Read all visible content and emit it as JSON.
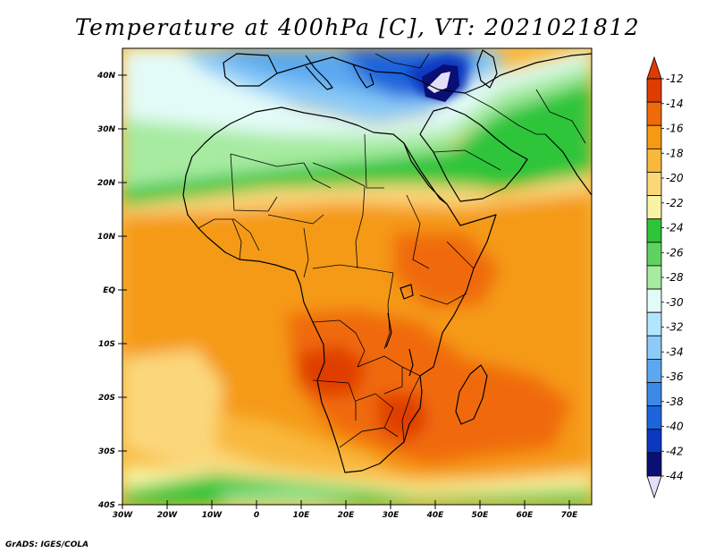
{
  "title": "Temperature at 400hPa [C], VT: 2021021812",
  "credit": "GrADS: IGES/COLA",
  "map": {
    "region": "Africa and surrounding oceans",
    "lon_range": [
      -30,
      75
    ],
    "lat_range": [
      -40,
      45
    ],
    "lat_ticks": [
      {
        "value": 40,
        "label": "40N"
      },
      {
        "value": 30,
        "label": "30N"
      },
      {
        "value": 20,
        "label": "20N"
      },
      {
        "value": 10,
        "label": "10N"
      },
      {
        "value": 0,
        "label": "EQ"
      },
      {
        "value": -10,
        "label": "10S"
      },
      {
        "value": -20,
        "label": "20S"
      },
      {
        "value": -30,
        "label": "30S"
      },
      {
        "value": -40,
        "label": "40S"
      }
    ],
    "lon_ticks": [
      {
        "value": -30,
        "label": "30W"
      },
      {
        "value": -20,
        "label": "20W"
      },
      {
        "value": -10,
        "label": "10W"
      },
      {
        "value": 0,
        "label": "0"
      },
      {
        "value": 10,
        "label": "10E"
      },
      {
        "value": 20,
        "label": "20E"
      },
      {
        "value": 30,
        "label": "30E"
      },
      {
        "value": 40,
        "label": "40E"
      },
      {
        "value": 50,
        "label": "50E"
      },
      {
        "value": 60,
        "label": "60E"
      },
      {
        "value": 70,
        "label": "70E"
      }
    ]
  },
  "colorbar": {
    "labels": [
      "-12",
      "-14",
      "-16",
      "-18",
      "-20",
      "-22",
      "-24",
      "-26",
      "-28",
      "-30",
      "-32",
      "-34",
      "-36",
      "-38",
      "-40",
      "-42",
      "-44"
    ],
    "colors": [
      "#e03c00",
      "#f06a0a",
      "#f59a12",
      "#f8b83e",
      "#fbd77a",
      "#f8f4a4",
      "#2ec53a",
      "#60d35e",
      "#a6eba0",
      "#e3fbf8",
      "#b2e6ff",
      "#8ccbf8",
      "#5aa8ef",
      "#3c8ae6",
      "#1e64dd",
      "#0a38c0",
      "#0a0f74"
    ],
    "top_arrow_color": "#e03c00",
    "bottom_arrow_color": "#e4e0fa"
  }
}
